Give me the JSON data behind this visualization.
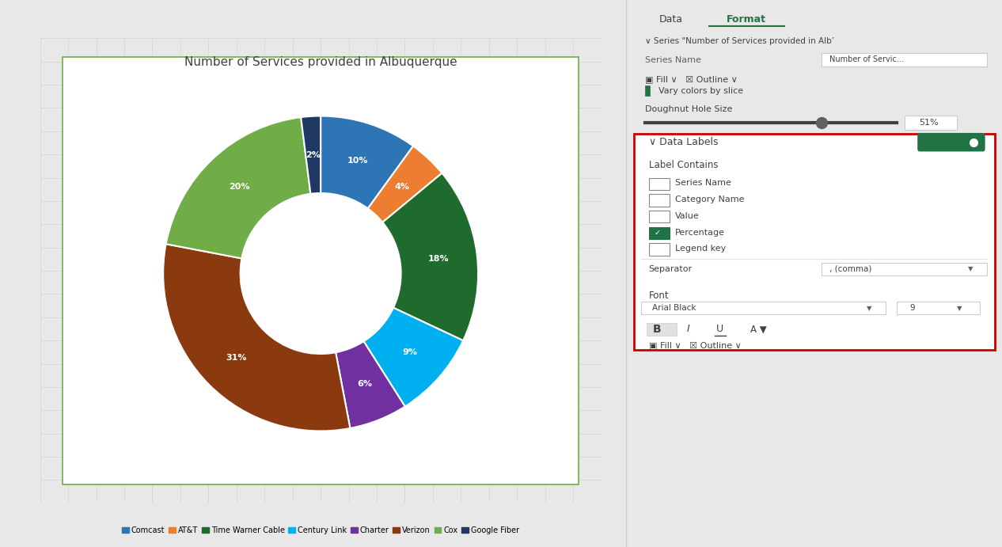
{
  "title": "Number of Services provided in Albuquerque",
  "labels": [
    "Comcast",
    "AT&T",
    "Time Warner Cable",
    "Century Link",
    "Charter",
    "Verizon",
    "Cox",
    "Google Fiber"
  ],
  "percentages": [
    10,
    4,
    18,
    9,
    6,
    31,
    20,
    2
  ],
  "colors": [
    "#2e75b6",
    "#ed7d31",
    "#1f6b2e",
    "#00b0f0",
    "#7030a0",
    "#8b3a0f",
    "#70ad47",
    "#1f3864"
  ],
  "label_color": "white",
  "label_fontsize": 9,
  "title_fontsize": 11,
  "background_color": "#e8e8e8",
  "chart_bg": "white",
  "legend_fontsize": 8,
  "donut_hole": 0.51,
  "startangle": 90,
  "grid_color": "#d0d0d0",
  "border_color": "#70ad47",
  "panel_bg": "white",
  "panel_header_color": "#217346",
  "red_box_color": "#cc0000"
}
